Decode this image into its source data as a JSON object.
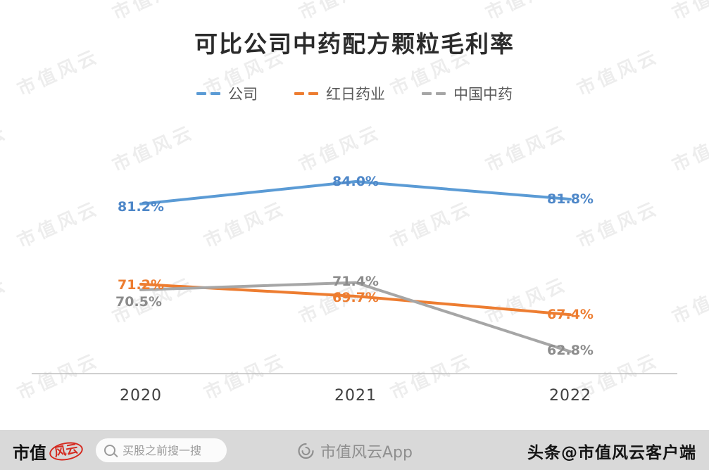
{
  "watermark": {
    "text": "市值风云"
  },
  "chart_data": {
    "type": "line",
    "title": "可比公司中药配方颗粒毛利率",
    "categories": [
      "2020",
      "2021",
      "2022"
    ],
    "series": [
      {
        "name": "公司",
        "values": [
          81.2,
          84.0,
          81.8
        ],
        "color": "#5B9BD5",
        "label_color": "#4E87C8"
      },
      {
        "name": "红日药业",
        "values": [
          71.2,
          69.7,
          67.4
        ],
        "color": "#ED7D31",
        "label_color": "#ED7D31"
      },
      {
        "name": "中国中药",
        "values": [
          70.5,
          71.4,
          62.8
        ],
        "color": "#A6A6A6",
        "label_color": "#8C8C8C"
      }
    ],
    "xlabel": "",
    "ylabel": "",
    "value_format": "percent_one_decimal",
    "data_labels": true,
    "legend_position": "top",
    "grid": false,
    "ylim": [
      60,
      88
    ]
  },
  "footer": {
    "logo_text_1": "市值",
    "logo_text_2": "风云",
    "search_placeholder": "买股之前搜一搜",
    "app_label": "市值风云App",
    "account_prefix": "头条",
    "account_handle": "@市值风云客户端"
  }
}
